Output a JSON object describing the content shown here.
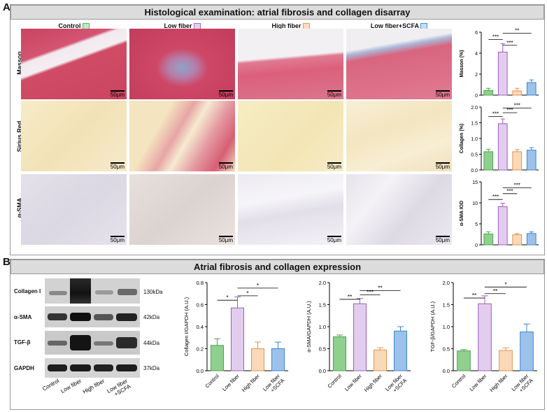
{
  "panelA": {
    "letter": "A",
    "title": "Histological examination: atrial fibrosis and collagen disarray",
    "groups": [
      {
        "name": "Control",
        "color": "#7ec87e"
      },
      {
        "name": "Low fiber",
        "color": "#c59ad8"
      },
      {
        "name": "High fiber",
        "color": "#f4b783"
      },
      {
        "name": "Low fiber+SCFA",
        "color": "#6fa8e2"
      }
    ],
    "rows": [
      "Masson",
      "Sirius Red",
      "α-SMA"
    ],
    "scale_label": "50μm"
  },
  "panelB": {
    "letter": "B",
    "title": "Atrial fibrosis and collagen expression",
    "blot_rows": [
      {
        "label": "Collagen I",
        "kda": "130kDa"
      },
      {
        "label": "α-SMA",
        "kda": "42kDa"
      },
      {
        "label": "TGF-β",
        "kda": "44kDa"
      },
      {
        "label": "GAPDH",
        "kda": "37kDa"
      }
    ],
    "blot_lanes": [
      "Control",
      "Low fiber",
      "High fiber",
      "Low fiber\n+SCFA"
    ]
  },
  "chart_data": [
    {
      "type": "bar",
      "categories": [
        "Control",
        "Low fiber",
        "High fiber",
        "Low fiber+SCFA"
      ],
      "values": [
        0.45,
        4.1,
        0.4,
        1.2
      ],
      "errors": [
        0.2,
        0.8,
        0.25,
        0.25
      ],
      "ylabel": "Masson (%)",
      "ylim": [
        0,
        6
      ],
      "yticks": [
        0,
        2,
        4,
        6
      ],
      "show_xticks": false,
      "sig": [
        {
          "a": 0,
          "b": 1,
          "label": "***",
          "y": 5.3
        },
        {
          "a": 1,
          "b": 2,
          "label": "***",
          "y": 4.75
        },
        {
          "a": 1,
          "b": 3,
          "label": "**",
          "y": 5.9
        }
      ]
    },
    {
      "type": "bar",
      "categories": [
        "Control",
        "Low fiber",
        "High fiber",
        "Low fiber+SCFA"
      ],
      "values": [
        0.58,
        1.47,
        0.58,
        0.63
      ],
      "errors": [
        0.08,
        0.15,
        0.07,
        0.08
      ],
      "ylabel": "Collagen (%)",
      "ylim": [
        0,
        2
      ],
      "yticks": [
        0.0,
        0.5,
        1.0,
        1.5,
        2.0
      ],
      "show_xticks": false,
      "sig": [
        {
          "a": 0,
          "b": 1,
          "label": "***",
          "y": 1.7
        },
        {
          "a": 1,
          "b": 2,
          "label": "***",
          "y": 1.82
        },
        {
          "a": 1,
          "b": 3,
          "label": "***",
          "y": 1.97
        }
      ]
    },
    {
      "type": "bar",
      "categories": [
        "Control",
        "Low fiber",
        "High fiber",
        "Low fiber+SCFA"
      ],
      "values": [
        2.6,
        9.1,
        2.4,
        2.7
      ],
      "errors": [
        0.5,
        0.8,
        0.3,
        0.4
      ],
      "ylabel": "α-SMA IOD",
      "ylim": [
        0,
        15
      ],
      "yticks": [
        0,
        5,
        10,
        15
      ],
      "show_xticks": false,
      "sig": [
        {
          "a": 0,
          "b": 1,
          "label": "***",
          "y": 10.8
        },
        {
          "a": 1,
          "b": 2,
          "label": "***",
          "y": 12.2
        },
        {
          "a": 1,
          "b": 3,
          "label": "***",
          "y": 13.6
        }
      ]
    },
    {
      "type": "bar",
      "categories": [
        "Control",
        "Low fiber",
        "High fiber",
        "Low fiber\n+SCFA"
      ],
      "values": [
        0.23,
        0.57,
        0.2,
        0.2
      ],
      "errors": [
        0.06,
        0.1,
        0.06,
        0.06
      ],
      "ylabel": "Collagen I/GAPDH (A.U.)",
      "ylim": [
        0,
        0.8
      ],
      "yticks": [
        0.0,
        0.2,
        0.4,
        0.6,
        0.8
      ],
      "show_xticks": true,
      "sig": [
        {
          "a": 0,
          "b": 1,
          "label": "*",
          "y": 0.64
        },
        {
          "a": 1,
          "b": 2,
          "label": "*",
          "y": 0.68
        },
        {
          "a": 1,
          "b": 3,
          "label": "*",
          "y": 0.75
        }
      ]
    },
    {
      "type": "bar",
      "categories": [
        "Control",
        "Low fiber",
        "High fiber",
        "Low fiber\n+SCFA"
      ],
      "values": [
        0.77,
        1.52,
        0.47,
        0.9
      ],
      "errors": [
        0.04,
        0.12,
        0.05,
        0.1
      ],
      "ylabel": "α-SMA/GAPDH (A.U.)",
      "ylim": [
        0,
        2
      ],
      "yticks": [
        0.0,
        0.5,
        1.0,
        1.5,
        2.0
      ],
      "show_xticks": true,
      "sig": [
        {
          "a": 0,
          "b": 1,
          "label": "**",
          "y": 1.62
        },
        {
          "a": 1,
          "b": 2,
          "label": "***",
          "y": 1.72
        },
        {
          "a": 1,
          "b": 3,
          "label": "**",
          "y": 1.82
        }
      ]
    },
    {
      "type": "bar",
      "categories": [
        "Control",
        "Low fiber",
        "High fiber",
        "Low fiber\n+SCFA"
      ],
      "values": [
        0.45,
        1.52,
        0.46,
        0.88
      ],
      "errors": [
        0.03,
        0.18,
        0.06,
        0.18
      ],
      "ylabel": "TGF-β/GAPDH (A.U.)",
      "ylim": [
        0,
        2
      ],
      "yticks": [
        0.0,
        0.5,
        1.0,
        1.5,
        2.0
      ],
      "show_xticks": true,
      "sig": [
        {
          "a": 0,
          "b": 1,
          "label": "**",
          "y": 1.65
        },
        {
          "a": 1,
          "b": 2,
          "label": "**",
          "y": 1.75
        },
        {
          "a": 1,
          "b": 3,
          "label": "*",
          "y": 1.9
        }
      ]
    }
  ]
}
